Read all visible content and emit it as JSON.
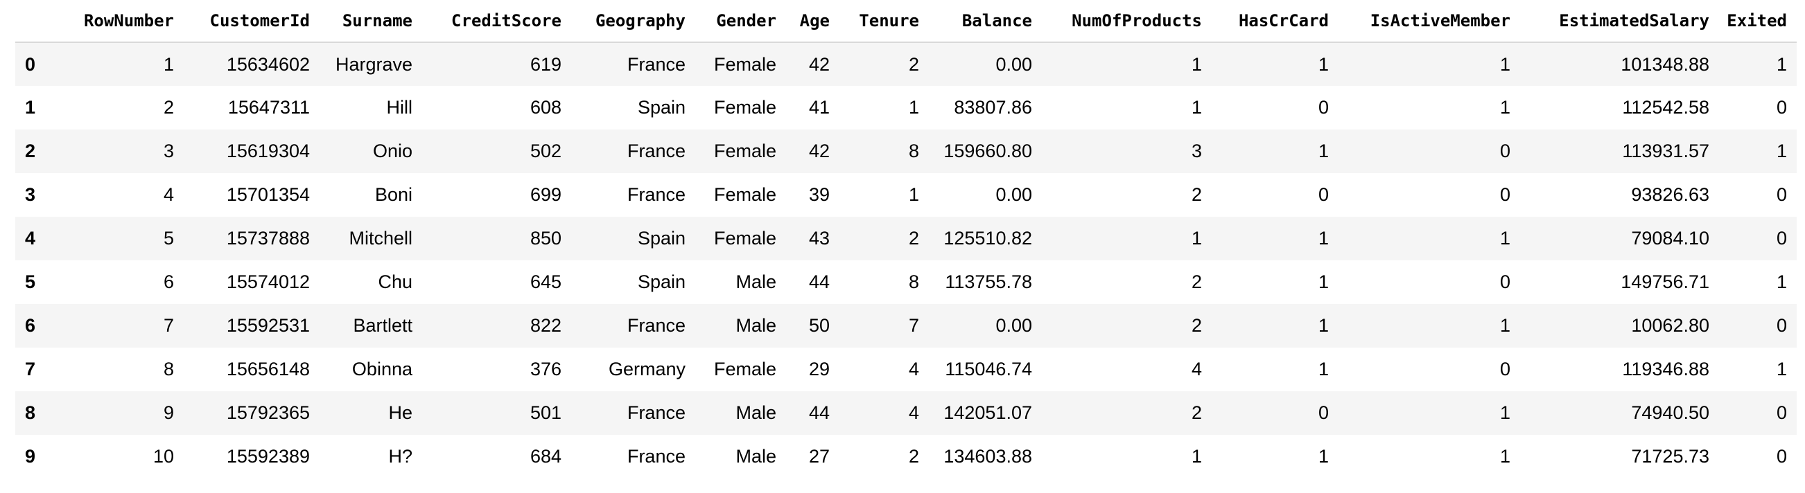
{
  "table": {
    "index_header": "",
    "columns": [
      "RowNumber",
      "CustomerId",
      "Surname",
      "CreditScore",
      "Geography",
      "Gender",
      "Age",
      "Tenure",
      "Balance",
      "NumOfProducts",
      "HasCrCard",
      "IsActiveMember",
      "EstimatedSalary",
      "Exited"
    ],
    "rows": [
      {
        "index": "0",
        "cells": [
          "1",
          "15634602",
          "Hargrave",
          "619",
          "France",
          "Female",
          "42",
          "2",
          "0.00",
          "1",
          "1",
          "1",
          "101348.88",
          "1"
        ]
      },
      {
        "index": "1",
        "cells": [
          "2",
          "15647311",
          "Hill",
          "608",
          "Spain",
          "Female",
          "41",
          "1",
          "83807.86",
          "1",
          "0",
          "1",
          "112542.58",
          "0"
        ]
      },
      {
        "index": "2",
        "cells": [
          "3",
          "15619304",
          "Onio",
          "502",
          "France",
          "Female",
          "42",
          "8",
          "159660.80",
          "3",
          "1",
          "0",
          "113931.57",
          "1"
        ]
      },
      {
        "index": "3",
        "cells": [
          "4",
          "15701354",
          "Boni",
          "699",
          "France",
          "Female",
          "39",
          "1",
          "0.00",
          "2",
          "0",
          "0",
          "93826.63",
          "0"
        ]
      },
      {
        "index": "4",
        "cells": [
          "5",
          "15737888",
          "Mitchell",
          "850",
          "Spain",
          "Female",
          "43",
          "2",
          "125510.82",
          "1",
          "1",
          "1",
          "79084.10",
          "0"
        ]
      },
      {
        "index": "5",
        "cells": [
          "6",
          "15574012",
          "Chu",
          "645",
          "Spain",
          "Male",
          "44",
          "8",
          "113755.78",
          "2",
          "1",
          "0",
          "149756.71",
          "1"
        ]
      },
      {
        "index": "6",
        "cells": [
          "7",
          "15592531",
          "Bartlett",
          "822",
          "France",
          "Male",
          "50",
          "7",
          "0.00",
          "2",
          "1",
          "1",
          "10062.80",
          "0"
        ]
      },
      {
        "index": "7",
        "cells": [
          "8",
          "15656148",
          "Obinna",
          "376",
          "Germany",
          "Female",
          "29",
          "4",
          "115046.74",
          "4",
          "1",
          "0",
          "119346.88",
          "1"
        ]
      },
      {
        "index": "8",
        "cells": [
          "9",
          "15792365",
          "He",
          "501",
          "France",
          "Male",
          "44",
          "4",
          "142051.07",
          "2",
          "0",
          "1",
          "74940.50",
          "0"
        ]
      },
      {
        "index": "9",
        "cells": [
          "10",
          "15592389",
          "H?",
          "684",
          "France",
          "Male",
          "27",
          "2",
          "134603.88",
          "1",
          "1",
          "1",
          "71725.73",
          "0"
        ]
      }
    ]
  },
  "colors": {
    "stripe": "#f5f5f5",
    "header_rule": "#d9d9d9",
    "text": "#000000"
  }
}
